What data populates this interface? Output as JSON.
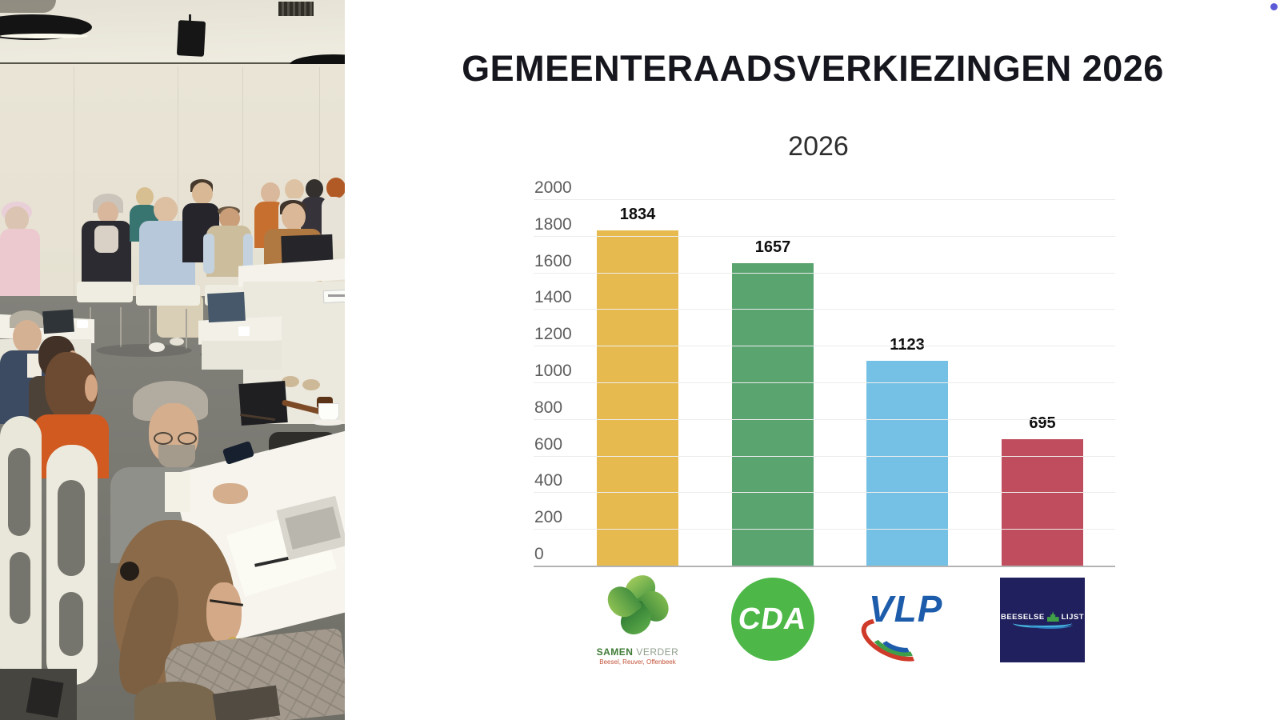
{
  "slide": {
    "title": "GEMEENTERAADSVERKIEZINGEN 2026"
  },
  "chart_data": {
    "type": "bar",
    "title": "2026",
    "categories": [
      "Samen Verder",
      "CDA",
      "VLP",
      "Beeselse Lijst"
    ],
    "values": [
      1834,
      1657,
      1123,
      695
    ],
    "bar_colors": [
      "#e7ba4f",
      "#5aa470",
      "#75c1e5",
      "#c04d5e"
    ],
    "ylim": [
      0,
      2000
    ],
    "ytick_step": 200,
    "yticks": [
      2000,
      1800,
      1600,
      1400,
      1200,
      1000,
      800,
      600,
      400,
      200,
      0
    ],
    "grid": true,
    "legend": "none",
    "xlabel": "",
    "ylabel": ""
  },
  "logos": {
    "samen_verder": {
      "word1": "SAMEN",
      "word2": "VERDER",
      "subtitle": "Beesel, Reuver, Offenbeek"
    },
    "cda": {
      "label": "CDA"
    },
    "vlp": {
      "label": "VLP"
    },
    "beeselse_lijst": {
      "word1": "BEESELSE",
      "word2": "LIJST"
    }
  },
  "colors": {
    "cda_green": "#4db848",
    "vlp_blue": "#1d5cab",
    "beeselse_navy": "#20205e",
    "samen_green": "#3f7a36",
    "accent_dot": "#5a5ad6",
    "gridline": "#ececec",
    "axis_line": "#b3b3b3"
  }
}
